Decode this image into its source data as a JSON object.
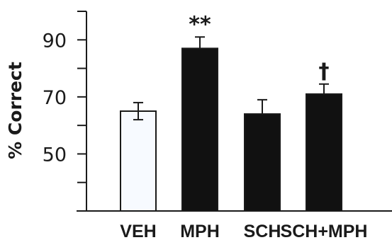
{
  "chart_data": {
    "type": "bar",
    "title": "",
    "xlabel": "",
    "ylabel": "% Correct",
    "ylim": [
      30,
      100
    ],
    "yticks_labeled": [
      50,
      70,
      90
    ],
    "yticks": [
      30,
      40,
      50,
      60,
      70,
      80,
      90,
      100
    ],
    "categories": [
      "VEH",
      "MPH",
      "SCH",
      "SCH+MPH"
    ],
    "values": [
      65,
      87,
      64,
      71
    ],
    "errors": [
      3,
      4,
      5,
      3.5
    ],
    "bar_colors": [
      "#f7faff",
      "#111111",
      "#111111",
      "#111111"
    ],
    "annotations": [
      "",
      "**",
      "",
      "†"
    ],
    "grid": false,
    "legend": "none"
  }
}
